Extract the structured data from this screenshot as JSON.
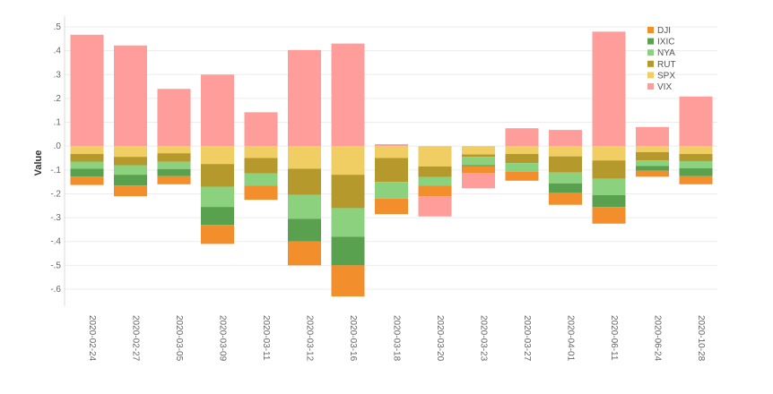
{
  "chart_data": {
    "type": "bar",
    "stacked": true,
    "title": "",
    "xlabel": "",
    "ylabel": "Value",
    "ylim": [
      -0.68,
      0.5
    ],
    "yticks": [
      0.5,
      0.4,
      0.3,
      0.2,
      0.1,
      0.0,
      -0.1,
      -0.2,
      -0.3,
      -0.4,
      -0.5,
      -0.6
    ],
    "ytick_labels": [
      ".5",
      ".4",
      ".3",
      ".2",
      ".1",
      ".0",
      "-.1",
      "-.2",
      "-.3",
      "-.4",
      "-.5",
      "-.6"
    ],
    "grid": true,
    "legend_position": "top-right",
    "categories": [
      "2020-02-24",
      "2020-02-27",
      "2020-03-05",
      "2020-03-09",
      "2020-03-11",
      "2020-03-12",
      "2020-03-16",
      "2020-03-18",
      "2020-03-20",
      "2020-03-23",
      "2020-03-27",
      "2020-04-01",
      "2020-06-11",
      "2020-06-24",
      "2020-10-28"
    ],
    "stack_order_negative": [
      "SPX",
      "RUT",
      "NYA",
      "IXIC",
      "DJI"
    ],
    "series": [
      {
        "name": "DJI",
        "color": "#F28E2B",
        "values": [
          -0.035,
          -0.045,
          -0.034,
          -0.08,
          -0.06,
          -0.1,
          -0.13,
          -0.065,
          -0.045,
          -0.027,
          -0.037,
          -0.05,
          -0.07,
          -0.025,
          -0.034
        ]
      },
      {
        "name": "IXIC",
        "color": "#59A14F",
        "values": [
          -0.033,
          -0.045,
          -0.03,
          -0.075,
          0.0,
          -0.095,
          -0.12,
          0.0,
          0.0,
          -0.005,
          0.0,
          -0.04,
          -0.05,
          -0.02,
          -0.033
        ]
      },
      {
        "name": "NYA",
        "color": "#8CD17D",
        "values": [
          -0.03,
          -0.04,
          -0.03,
          -0.085,
          -0.05,
          -0.1,
          -0.12,
          -0.07,
          -0.035,
          -0.035,
          -0.037,
          -0.045,
          -0.068,
          -0.023,
          -0.03
        ]
      },
      {
        "name": "RUT",
        "color": "#B6992D",
        "values": [
          -0.032,
          -0.035,
          -0.036,
          -0.095,
          -0.065,
          -0.11,
          -0.14,
          -0.1,
          -0.045,
          -0.01,
          -0.038,
          -0.068,
          -0.077,
          -0.035,
          -0.03
        ]
      },
      {
        "name": "SPX",
        "color": "#F1CE63",
        "values": [
          -0.033,
          -0.045,
          -0.03,
          -0.075,
          -0.05,
          -0.095,
          -0.12,
          -0.05,
          -0.085,
          -0.035,
          -0.033,
          -0.043,
          -0.06,
          -0.025,
          -0.033
        ]
      },
      {
        "name": "VIX",
        "color": "#FF9D9A",
        "values": [
          0.467,
          0.422,
          0.24,
          0.3,
          0.142,
          0.403,
          0.43,
          0.008,
          -0.085,
          -0.065,
          0.075,
          0.068,
          0.48,
          0.08,
          0.208
        ]
      }
    ]
  }
}
